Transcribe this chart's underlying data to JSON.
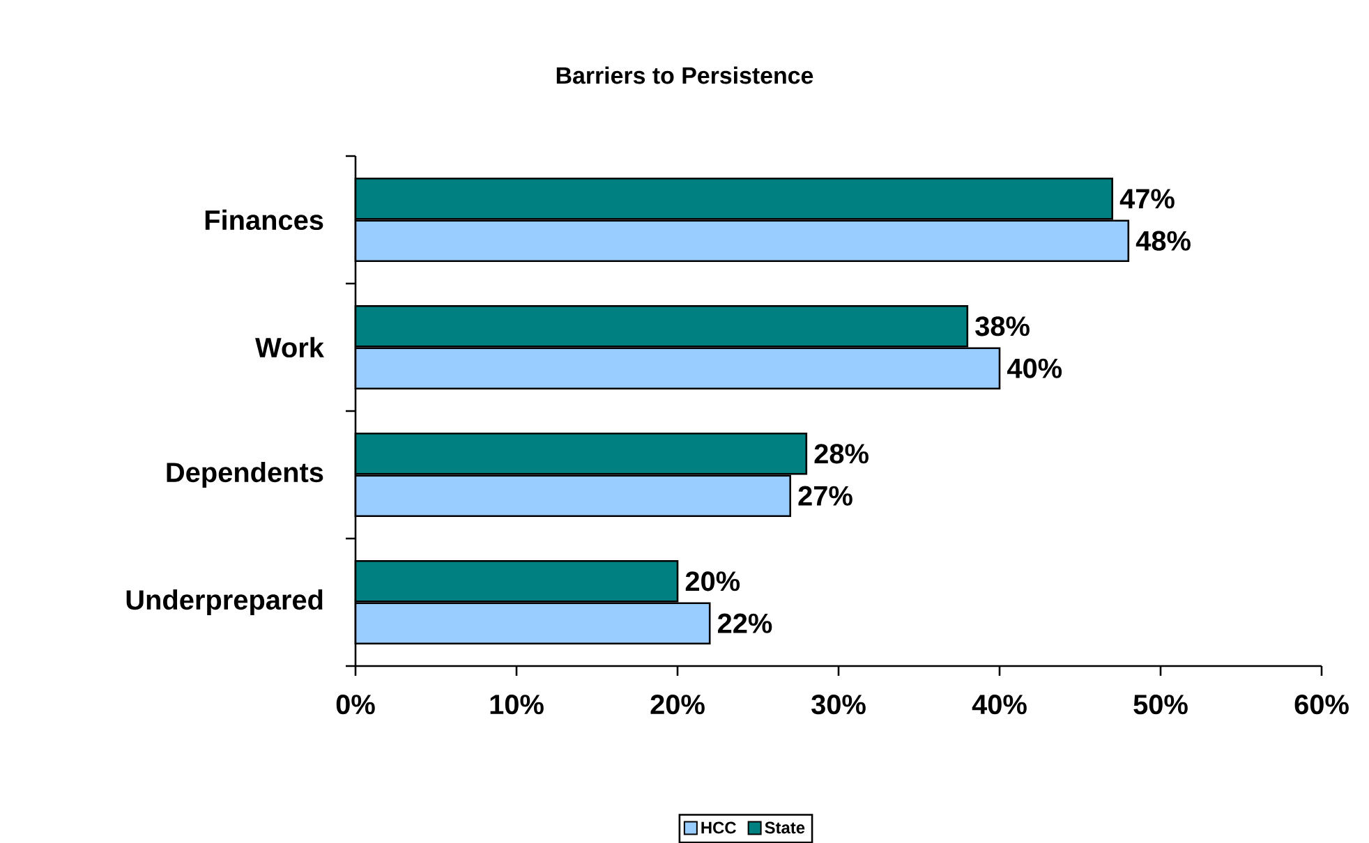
{
  "chart_data": {
    "type": "bar",
    "orientation": "horizontal",
    "title": "Barriers to Persistence",
    "categories": [
      "Finances",
      "Work",
      "Dependents",
      "Underprepared"
    ],
    "series": [
      {
        "name": "HCC",
        "color": "#99ccff",
        "values": [
          48,
          40,
          27,
          22
        ],
        "value_labels": [
          "48%",
          "40%",
          "27%",
          "22%"
        ]
      },
      {
        "name": "State",
        "color": "#008080",
        "values": [
          47,
          38,
          28,
          20
        ],
        "value_labels": [
          "47%",
          "38%",
          "28%",
          "20%"
        ]
      }
    ],
    "xlim": [
      0,
      60
    ],
    "xticks": [
      {
        "value": 0,
        "label": "0%"
      },
      {
        "value": 10,
        "label": "10%"
      },
      {
        "value": 20,
        "label": "20%"
      },
      {
        "value": 30,
        "label": "30%"
      },
      {
        "value": 40,
        "label": "40%"
      },
      {
        "value": 50,
        "label": "50%"
      },
      {
        "value": 60,
        "label": "60%"
      }
    ],
    "grid": false,
    "legend": "bottom"
  }
}
